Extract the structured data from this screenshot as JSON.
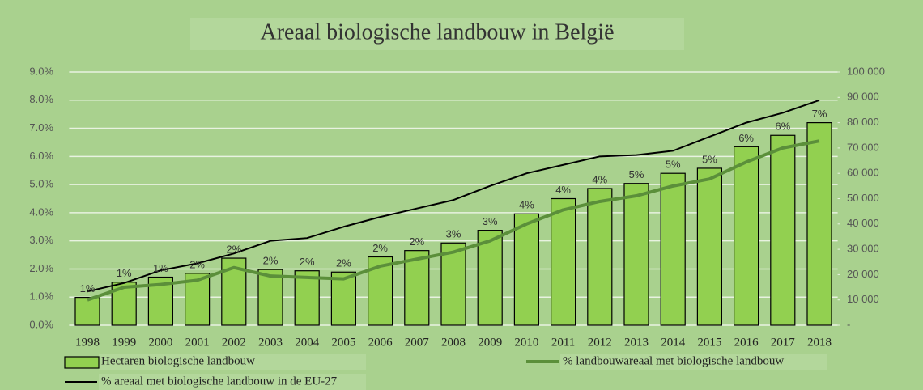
{
  "chart_data": {
    "type": "combo",
    "title": "Areaal biologische landbouw in België",
    "categories": [
      "1998",
      "1999",
      "2000",
      "2001",
      "2002",
      "2003",
      "2004",
      "2005",
      "2006",
      "2007",
      "2008",
      "2009",
      "2010",
      "2011",
      "2012",
      "2013",
      "2014",
      "2015",
      "2016",
      "2017",
      "2018"
    ],
    "series": [
      {
        "name": "Hectaren biologische landbouw",
        "type": "bar",
        "axis": "y2",
        "color": "#92d050",
        "values": [
          11000,
          17000,
          19000,
          20500,
          26500,
          22000,
          21500,
          21000,
          27000,
          29500,
          32500,
          37500,
          44000,
          50000,
          54000,
          56000,
          60000,
          62000,
          70500,
          75000,
          80000
        ]
      },
      {
        "name": "% landbouwareaal met biologische landbouw",
        "type": "line",
        "axis": "y",
        "color": "#5b8f3a",
        "values": [
          0.9,
          1.35,
          1.45,
          1.6,
          2.05,
          1.75,
          1.7,
          1.65,
          2.1,
          2.35,
          2.6,
          3.0,
          3.6,
          4.1,
          4.4,
          4.6,
          4.95,
          5.2,
          5.8,
          6.3,
          6.55
        ],
        "value_labels": [
          "1%",
          "1%",
          "1%",
          "2%",
          "2%",
          "2%",
          "2%",
          "2%",
          "2%",
          "2%",
          "3%",
          "3%",
          "4%",
          "4%",
          "4%",
          "5%",
          "5%",
          "5%",
          "6%",
          "6%",
          "7%"
        ]
      },
      {
        "name": "% areaal met biologische landbouw in de EU-27",
        "type": "line",
        "axis": "y",
        "color": "#000000",
        "values": [
          1.2,
          1.5,
          1.95,
          2.2,
          2.55,
          3.0,
          3.1,
          3.5,
          3.85,
          4.15,
          4.45,
          4.95,
          5.4,
          5.7,
          6.0,
          6.05,
          6.2,
          6.7,
          7.2,
          7.55,
          8.0
        ]
      }
    ],
    "ylim": [
      0,
      9
    ],
    "yticks": [
      {
        "value": 0,
        "label": "0.0%"
      },
      {
        "value": 1,
        "label": "1.0%"
      },
      {
        "value": 2,
        "label": "2.0%"
      },
      {
        "value": 3,
        "label": "3.0%"
      },
      {
        "value": 4,
        "label": "4.0%"
      },
      {
        "value": 5,
        "label": "5.0%"
      },
      {
        "value": 6,
        "label": "6.0%"
      },
      {
        "value": 7,
        "label": "7.0%"
      },
      {
        "value": 8,
        "label": "8.0%"
      },
      {
        "value": 9,
        "label": "9.0%"
      }
    ],
    "y2lim": [
      0,
      100000
    ],
    "y2ticks": [
      {
        "value": 0,
        "label": "-"
      },
      {
        "value": 10000,
        "label": "10 000"
      },
      {
        "value": 20000,
        "label": "20 000"
      },
      {
        "value": 30000,
        "label": "30 000"
      },
      {
        "value": 40000,
        "label": "40 000"
      },
      {
        "value": 50000,
        "label": "50 000"
      },
      {
        "value": 60000,
        "label": "60 000"
      },
      {
        "value": 70000,
        "label": "70 000"
      },
      {
        "value": 80000,
        "label": "80 000"
      },
      {
        "value": 90000,
        "label": "90 000"
      },
      {
        "value": 100000,
        "label": "100 000"
      }
    ],
    "grid": true,
    "legend": "bottom"
  }
}
